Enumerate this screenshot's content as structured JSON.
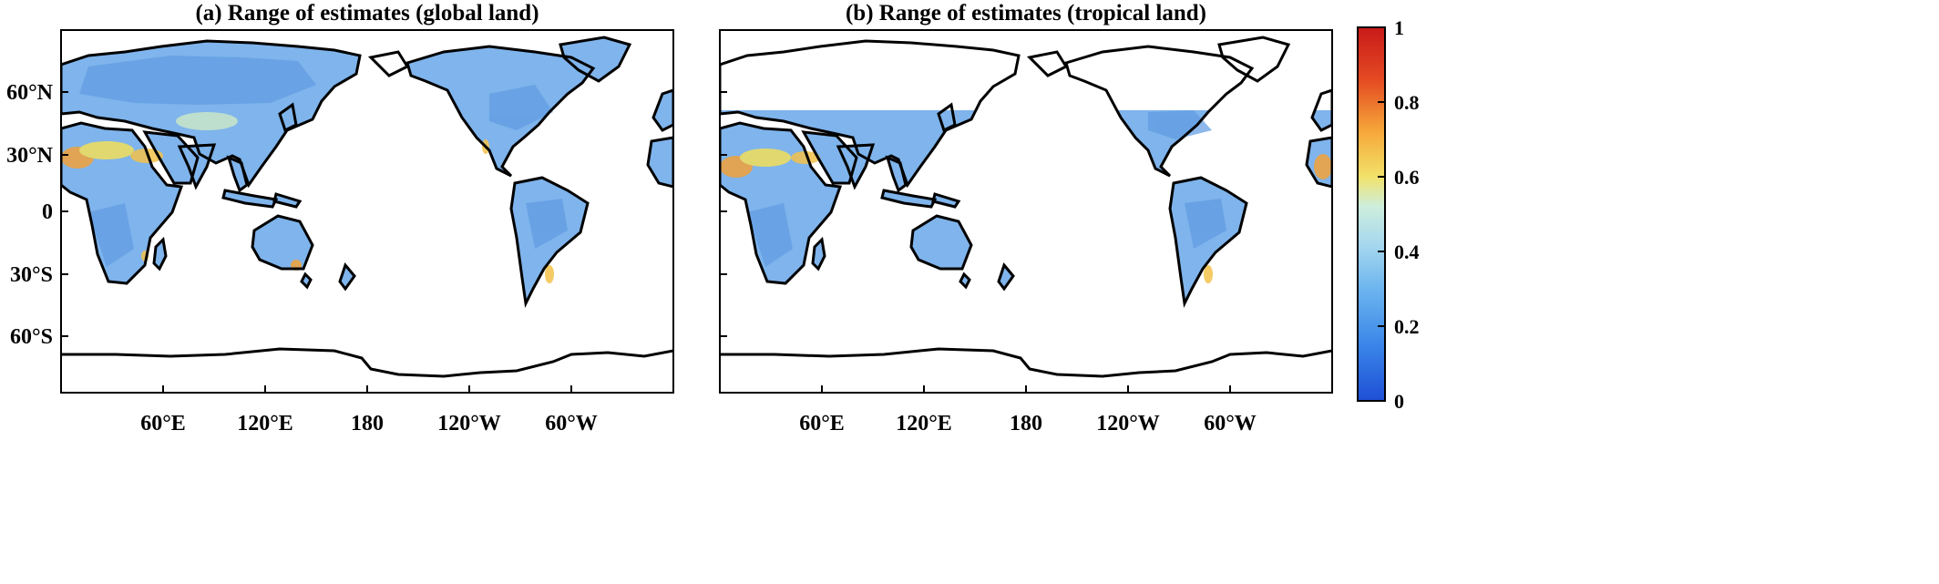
{
  "figure": {
    "panels": [
      {
        "title": "(a) Range of estimates (global land)",
        "lat_ticks": [
          "60°N",
          "30°N",
          "0",
          "30°S",
          "60°S"
        ],
        "lon_ticks": [
          "60°E",
          "120°E",
          "180",
          "120°W",
          "60°W"
        ],
        "coverage": "global land"
      },
      {
        "title": "(b) Range of estimates (tropical land)",
        "lat_ticks": [],
        "lon_ticks": [
          "60°E",
          "120°E",
          "180",
          "120°W",
          "60°W"
        ],
        "coverage": "land equatorward of ~50°N"
      }
    ],
    "colorbar": {
      "ticks": [
        "1",
        "0.8",
        "0.6",
        "0.4",
        "0.2",
        "0"
      ],
      "colormap": [
        "#1f4fd6",
        "#3a86e8",
        "#6db5ef",
        "#a7d8ee",
        "#f2e26a",
        "#f6a83a",
        "#e44a22",
        "#c81a1a"
      ]
    },
    "colors": {
      "land_low": "#5f9be3",
      "land_mid": "#8cc2f0",
      "hotspot_yellow": "#f3e05a",
      "hotspot_orange": "#f2a23a",
      "coast": "#000000"
    }
  }
}
